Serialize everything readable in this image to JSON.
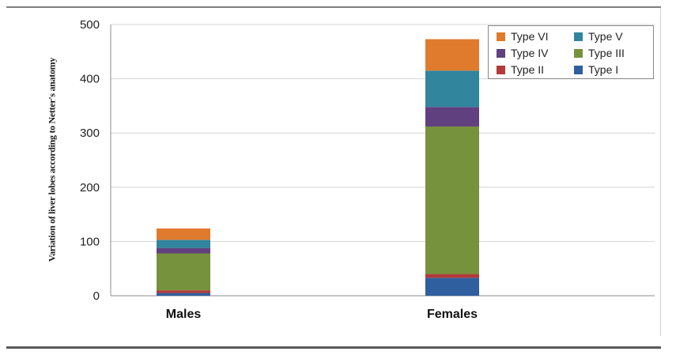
{
  "chart_data": {
    "type": "bar",
    "stacked": true,
    "categories": [
      "Males",
      "Females"
    ],
    "ylabel": "Variation of liver lobes according to Netter's anatomy",
    "xlabel": "",
    "ylim": [
      0,
      500
    ],
    "yticks": [
      0,
      100,
      200,
      300,
      400,
      500
    ],
    "grid": true,
    "legend_position": "top-right",
    "series": [
      {
        "name": "Type I",
        "color": "#2f5f9e",
        "values": [
          5,
          33
        ]
      },
      {
        "name": "Type II",
        "color": "#b33a3a",
        "values": [
          5,
          7
        ]
      },
      {
        "name": "Type III",
        "color": "#76923c",
        "values": [
          68,
          272
        ]
      },
      {
        "name": "Type IV",
        "color": "#60407f",
        "values": [
          10,
          36
        ]
      },
      {
        "name": "Type V",
        "color": "#31859c",
        "values": [
          15,
          67
        ]
      },
      {
        "name": "Type VI",
        "color": "#e07b2e",
        "values": [
          21,
          58
        ]
      }
    ],
    "legend_order": [
      "Type VI",
      "Type V",
      "Type IV",
      "Type III",
      "Type II",
      "Type I"
    ]
  }
}
